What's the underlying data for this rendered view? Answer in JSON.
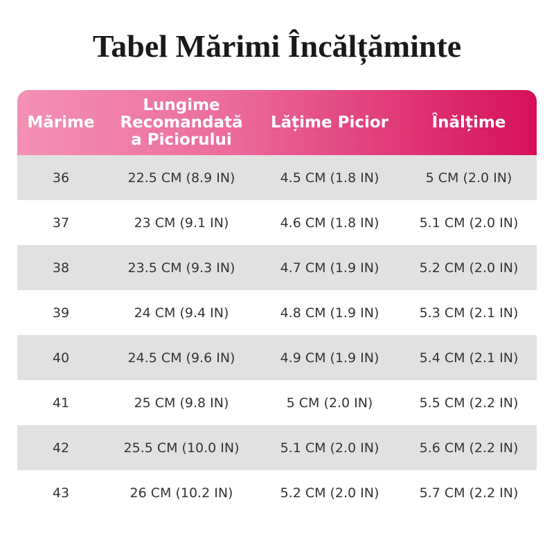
{
  "title": "Tabel Mărimi Încălțăminte",
  "table": {
    "header": [
      "Mărime",
      [
        "Lungime",
        "Recomandată",
        "a Piciorului"
      ],
      "Lățime Picior",
      "Înălțime"
    ],
    "rows": [
      [
        "36",
        "22.5 CM (8.9 IN)",
        "4.5 CM (1.8 IN)",
        "5 CM (2.0 IN)"
      ],
      [
        "37",
        "23 CM (9.1 IN)",
        "4.6 CM (1.8 IN)",
        "5.1 CM (2.0 IN)"
      ],
      [
        "38",
        "23.5 CM (9.3 IN)",
        "4.7 CM (1.9 IN)",
        "5.2 CM (2.0 IN)"
      ],
      [
        "39",
        "24 CM (9.4 IN)",
        "4.8 CM (1.9 IN)",
        "5.3 CM (2.1 IN)"
      ],
      [
        "40",
        "24.5 CM (9.6 IN)",
        "4.9 CM (1.9 IN)",
        "5.4 CM (2.1 IN)"
      ],
      [
        "41",
        "25 CM (9.8 IN)",
        "5 CM (2.0 IN)",
        "5.5 CM (2.2 IN)"
      ],
      [
        "42",
        "25.5 CM (10.0 IN)",
        "5.1 CM (2.0 IN)",
        "5.6 CM (2.2 IN)"
      ],
      [
        "43",
        "26 CM (10.2 IN)",
        "5.2 CM (2.0 IN)",
        "5.7 CM (2.2 IN)"
      ]
    ]
  }
}
